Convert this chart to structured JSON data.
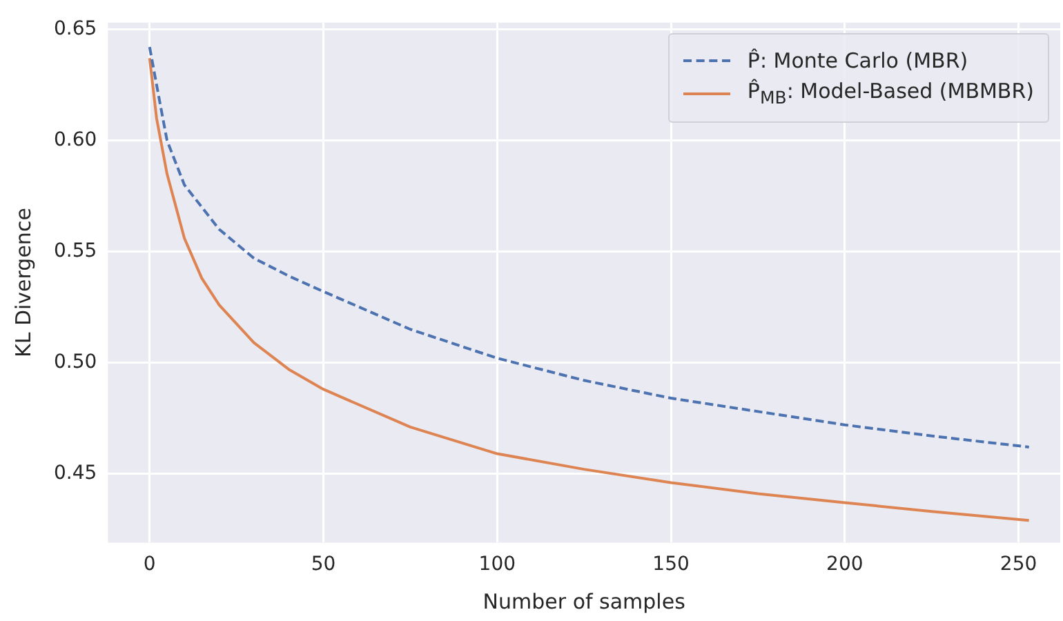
{
  "chart_data": {
    "type": "line",
    "xlabel": "Number of samples",
    "ylabel": "KL Divergence",
    "xlim": [
      -12,
      262
    ],
    "ylim": [
      0.419,
      0.653
    ],
    "xticks": [
      0,
      50,
      100,
      150,
      200,
      250
    ],
    "yticks": [
      {
        "value": 0.45,
        "label": "0.45"
      },
      {
        "value": 0.5,
        "label": "0.50"
      },
      {
        "value": 0.55,
        "label": "0.55"
      },
      {
        "value": 0.6,
        "label": "0.60"
      },
      {
        "value": 0.65,
        "label": "0.65"
      }
    ],
    "grid": true,
    "legend": "top right",
    "marker": "none",
    "series": [
      {
        "name": "P̂: Monte Carlo (MBR)",
        "color": "#4c72b0",
        "line_style": "dashed",
        "x": [
          0,
          2,
          5,
          10,
          20,
          30,
          40,
          50,
          75,
          100,
          125,
          150,
          175,
          200,
          225,
          253
        ],
        "values": [
          0.642,
          0.625,
          0.6,
          0.58,
          0.56,
          0.547,
          0.539,
          0.532,
          0.515,
          0.502,
          0.492,
          0.484,
          0.478,
          0.472,
          0.467,
          0.462
        ]
      },
      {
        "name": "P̂$_{MB}$: Model-Based (MBMBR)",
        "color": "#dd8452",
        "line_style": "solid",
        "x": [
          0,
          2,
          5,
          10,
          15,
          20,
          30,
          40,
          50,
          75,
          100,
          125,
          150,
          175,
          200,
          225,
          253
        ],
        "values": [
          0.637,
          0.61,
          0.585,
          0.556,
          0.538,
          0.526,
          0.509,
          0.497,
          0.488,
          0.471,
          0.459,
          0.452,
          0.446,
          0.441,
          0.437,
          0.433,
          0.429
        ]
      }
    ]
  }
}
